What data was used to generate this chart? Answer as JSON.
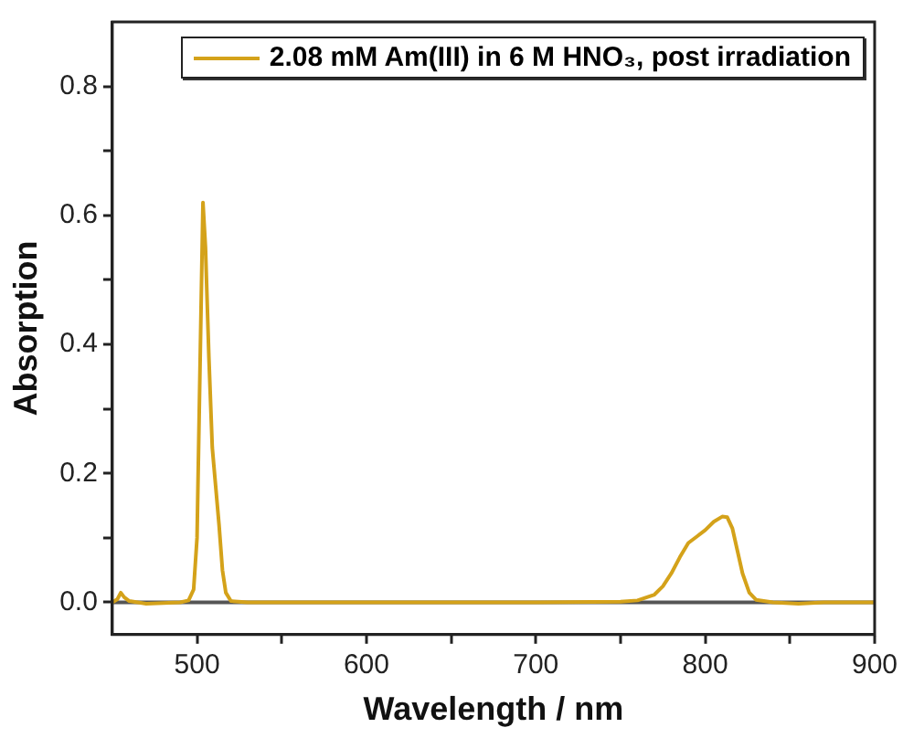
{
  "chart_data": {
    "type": "line",
    "xlabel": "Wavelength / nm",
    "ylabel": "Absorption",
    "x": [
      450,
      453,
      455,
      457,
      460,
      470,
      480,
      490,
      495,
      498,
      500,
      502,
      503.5,
      505,
      507,
      509,
      511,
      513,
      515,
      517,
      520,
      530,
      600,
      700,
      750,
      760,
      770,
      775,
      780,
      785,
      790,
      795,
      800,
      805,
      810,
      813,
      816,
      819,
      822,
      826,
      830,
      840,
      855,
      870,
      900
    ],
    "series": [
      {
        "name": "2.08 mM Am(III) in 6 M HNO₃, post irradiation",
        "color": "#d4a21a",
        "values": [
          0,
          0.005,
          0.015,
          0.008,
          0.002,
          -0.002,
          -0.001,
          0,
          0.003,
          0.02,
          0.1,
          0.4,
          0.62,
          0.55,
          0.38,
          0.24,
          0.18,
          0.12,
          0.05,
          0.015,
          0.002,
          0,
          0,
          0,
          0.001,
          0.003,
          0.012,
          0.025,
          0.045,
          0.07,
          0.092,
          0.102,
          0.112,
          0.125,
          0.133,
          0.132,
          0.115,
          0.08,
          0.045,
          0.015,
          0.004,
          0,
          -0.002,
          0,
          0
        ]
      }
    ],
    "xlim": [
      450,
      900
    ],
    "ylim": [
      -0.05,
      0.9
    ],
    "xticks": [
      500,
      {
        "value": 550,
        "label": null
      },
      600,
      {
        "value": 650,
        "label": null
      },
      700,
      {
        "value": 750,
        "label": null
      },
      800,
      {
        "value": 850,
        "label": null
      },
      900
    ],
    "yticks": [
      {
        "value": 0,
        "label": "0.0"
      },
      {
        "value": 0.1,
        "label": null
      },
      0.2,
      {
        "value": 0.3,
        "label": null
      },
      0.4,
      {
        "value": 0.5,
        "label": null
      },
      0.6,
      {
        "value": 0.7,
        "label": null
      },
      0.8
    ],
    "ref_lines": [
      {
        "axis": "y",
        "value": 0,
        "color": "#555555"
      }
    ],
    "grid": false,
    "legend": "top right",
    "marker": "none",
    "line_style": "solid"
  }
}
